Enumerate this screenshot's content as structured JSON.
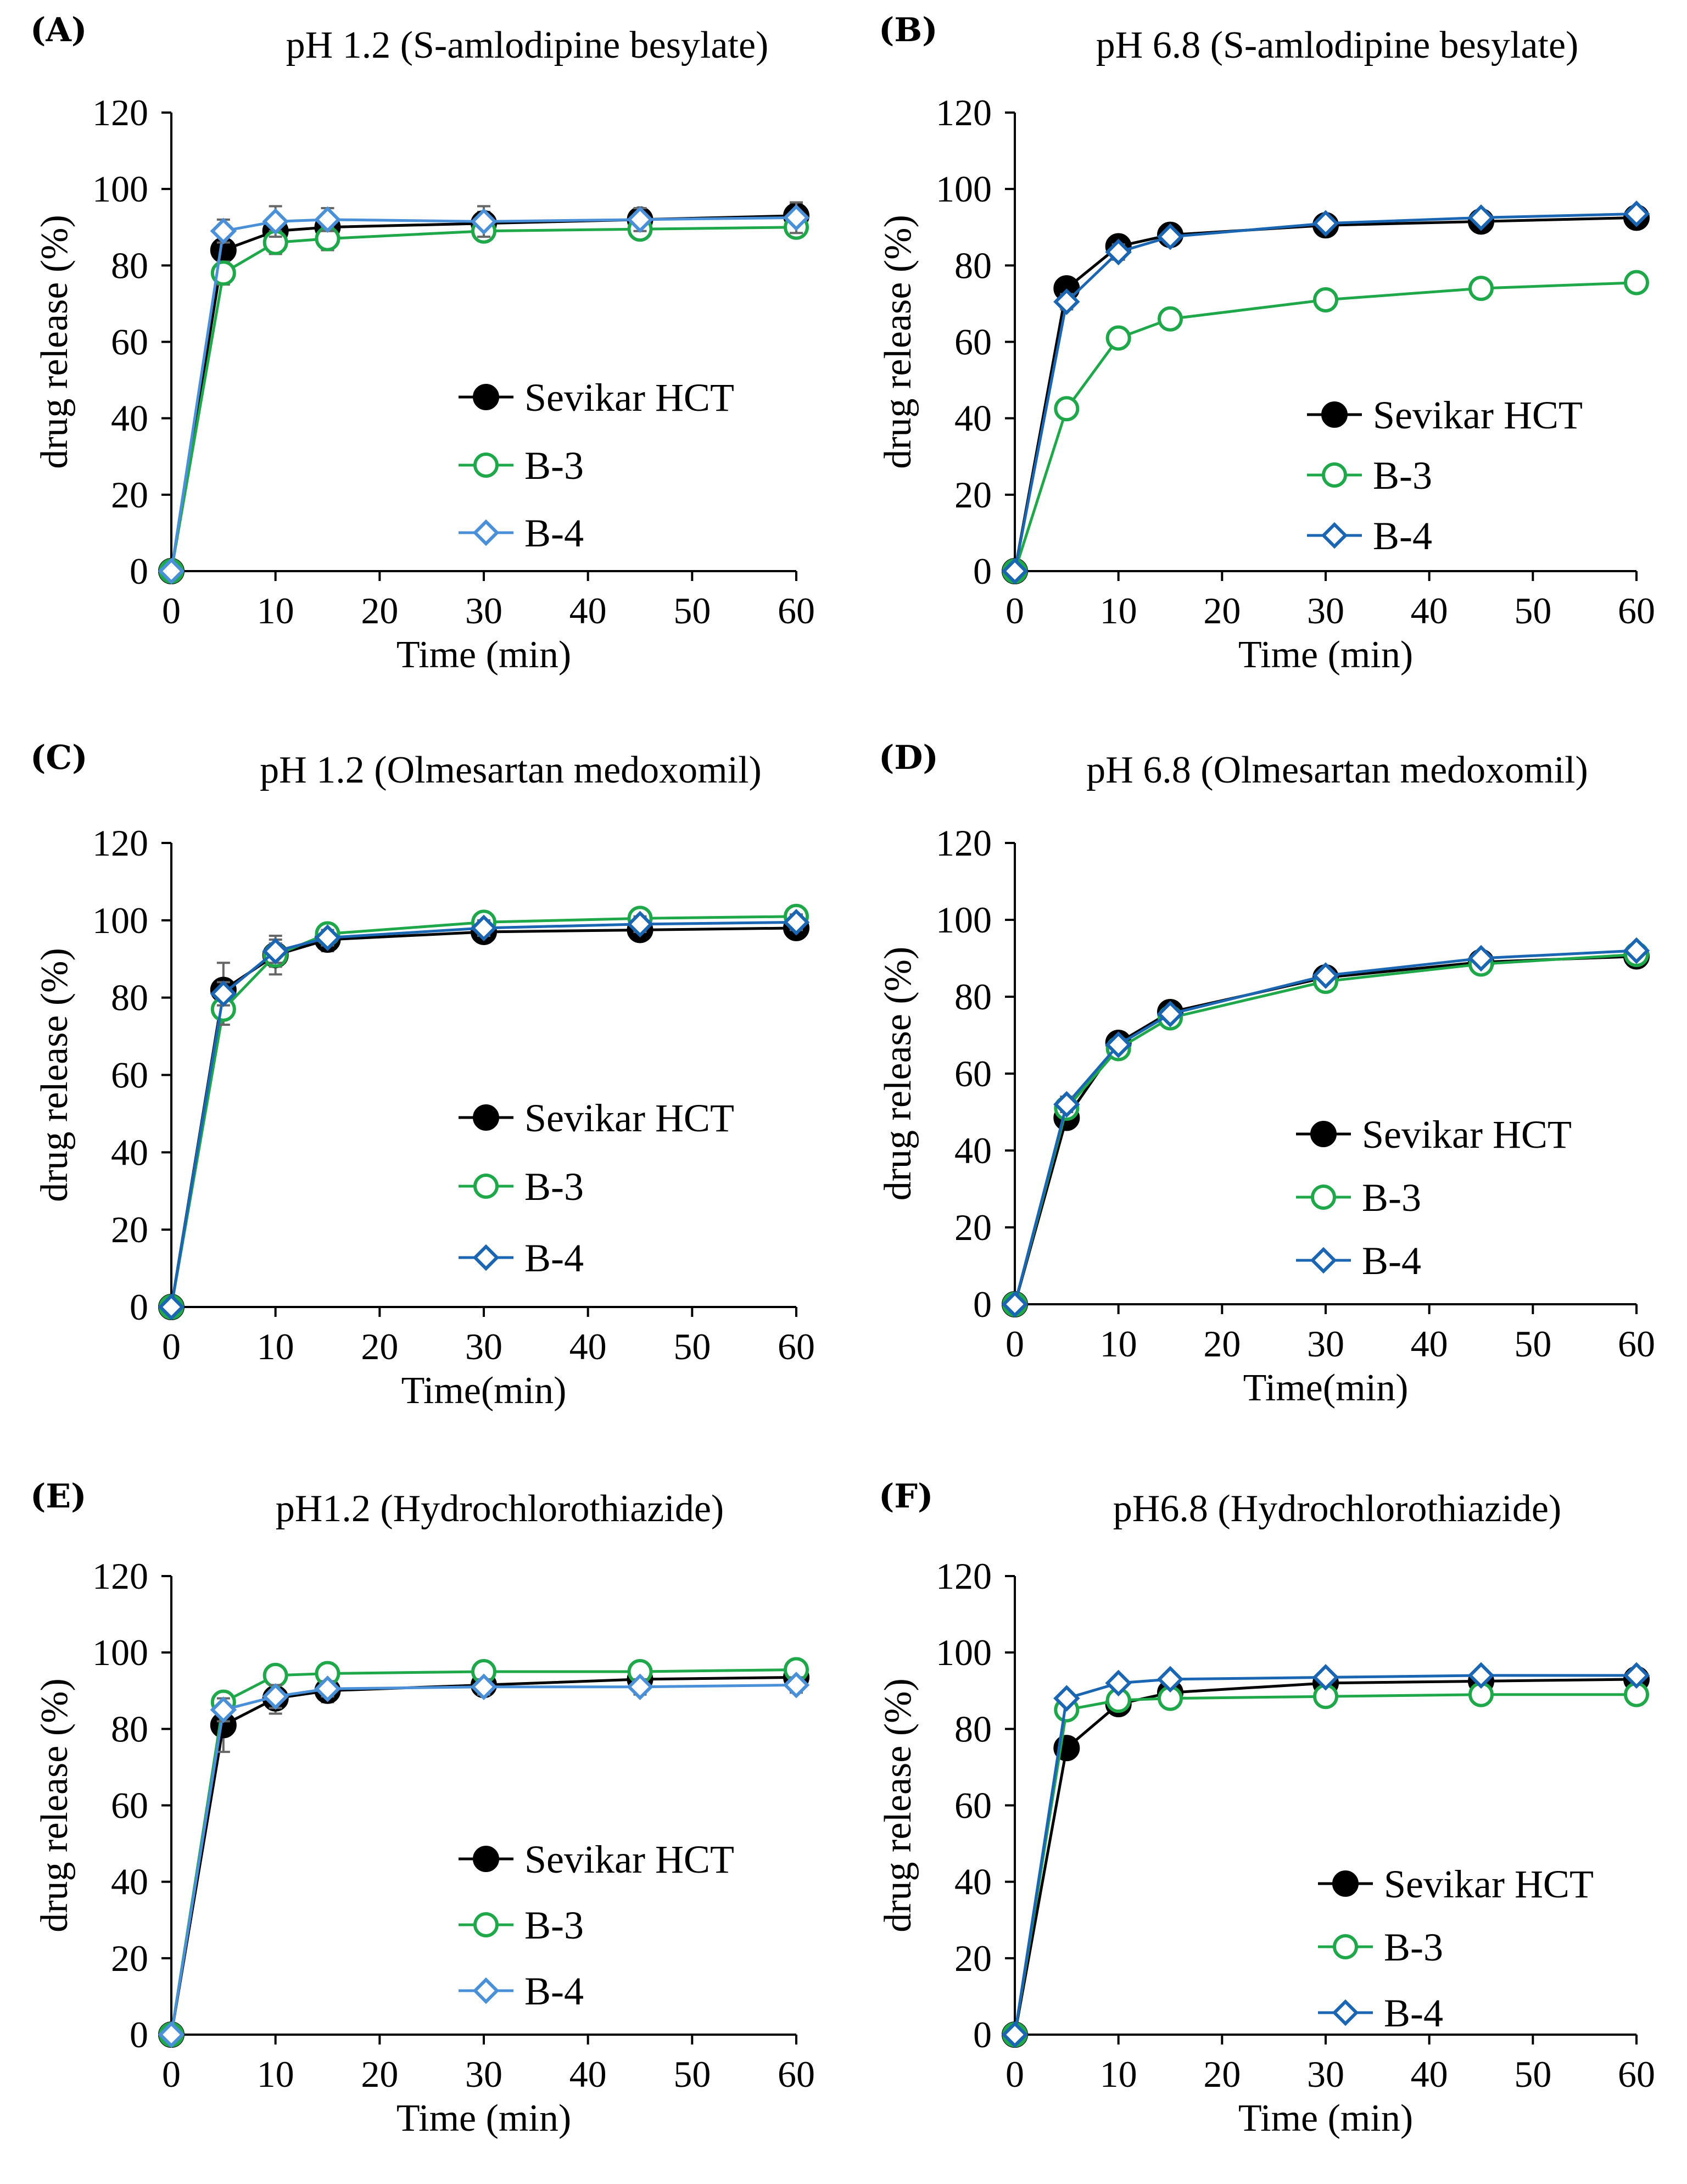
{
  "figure": {
    "panel_count": 6
  },
  "chart_data": [
    {
      "type": "line",
      "panel_label": "(A)",
      "title": "pH 1.2 (S-amlodipine besylate)",
      "xlabel": "Time (min)",
      "ylabel": "drug release (%)",
      "xlim": [
        0,
        60
      ],
      "ylim": [
        0,
        120
      ],
      "x_ticks": [
        0,
        10,
        20,
        30,
        40,
        50,
        60
      ],
      "y_ticks": [
        0,
        20,
        40,
        60,
        80,
        100,
        120
      ],
      "x": [
        0,
        5,
        10,
        15,
        30,
        45,
        60
      ],
      "legend": "center-right",
      "series": [
        {
          "name": "Sevikar HCT",
          "marker": "circle-filled",
          "color": "#000000",
          "values": [
            0,
            84,
            89,
            90,
            91,
            92,
            93
          ],
          "errors": [
            0,
            4,
            3,
            3,
            3,
            3,
            3
          ]
        },
        {
          "name": "B-3",
          "marker": "circle-open",
          "color": "#1fa84a",
          "values": [
            0,
            78,
            86,
            87,
            89,
            89.5,
            90
          ],
          "errors": [
            0,
            3,
            3,
            3,
            2,
            2,
            2
          ]
        },
        {
          "name": "B-4",
          "marker": "diamond-open",
          "color": "#4a90d9",
          "values": [
            0,
            89,
            91.5,
            92,
            91.5,
            92,
            92.5
          ],
          "errors": [
            0,
            3,
            4,
            3,
            4,
            3,
            4
          ]
        }
      ]
    },
    {
      "type": "line",
      "panel_label": "(B)",
      "title": "pH 6.8 (S-amlodipine besylate)",
      "xlabel": "Time (min)",
      "ylabel": "drug release (%)",
      "xlim": [
        0,
        60
      ],
      "ylim": [
        0,
        120
      ],
      "x_ticks": [
        0,
        10,
        20,
        30,
        40,
        50,
        60
      ],
      "y_ticks": [
        0,
        20,
        40,
        60,
        80,
        100,
        120
      ],
      "x": [
        0,
        5,
        10,
        15,
        30,
        45,
        60
      ],
      "legend": "bottom-right",
      "series": [
        {
          "name": "Sevikar HCT",
          "marker": "circle-filled",
          "color": "#000000",
          "values": [
            0,
            74,
            85,
            88,
            90.5,
            91.5,
            92.5
          ],
          "errors": [
            0,
            2,
            2,
            2,
            1.5,
            1.5,
            1.5
          ]
        },
        {
          "name": "B-3",
          "marker": "circle-open",
          "color": "#1fa84a",
          "values": [
            0,
            42.5,
            61,
            66,
            71,
            74,
            75.5
          ],
          "errors": [
            0,
            2,
            2,
            2,
            2,
            2,
            2
          ]
        },
        {
          "name": "B-4",
          "marker": "diamond-open",
          "color": "#1a66b3",
          "values": [
            0,
            70.5,
            83.5,
            87.5,
            91,
            92.5,
            93.5
          ],
          "errors": [
            0,
            2,
            2,
            1.5,
            1.5,
            1.5,
            1.5
          ]
        }
      ]
    },
    {
      "type": "line",
      "panel_label": "(C)",
      "title": "pH 1.2 (Olmesartan medoxomil)",
      "xlabel": "Time(min)",
      "ylabel": "drug release (%)",
      "xlim": [
        0,
        60
      ],
      "ylim": [
        0,
        120
      ],
      "x_ticks": [
        0,
        10,
        20,
        30,
        40,
        50,
        60
      ],
      "y_ticks": [
        0,
        20,
        40,
        60,
        80,
        100,
        120
      ],
      "x": [
        0,
        5,
        10,
        15,
        30,
        45,
        60
      ],
      "legend": "center-right",
      "series": [
        {
          "name": "Sevikar HCT",
          "marker": "circle-filled",
          "color": "#000000",
          "values": [
            0,
            82,
            91,
            95,
            97,
            97.5,
            98
          ],
          "errors": [
            0,
            7,
            5,
            3,
            2,
            2,
            2
          ]
        },
        {
          "name": "B-3",
          "marker": "circle-open",
          "color": "#1fa84a",
          "values": [
            0,
            77,
            91,
            96.5,
            99.5,
            100.5,
            101
          ],
          "errors": [
            0,
            4,
            3,
            2,
            2,
            2,
            2
          ]
        },
        {
          "name": "B-4",
          "marker": "diamond-open",
          "color": "#1a66b3",
          "values": [
            0,
            81,
            92,
            95.5,
            98,
            99,
            99.5
          ],
          "errors": [
            0,
            3,
            3,
            2,
            2,
            2,
            2
          ]
        }
      ]
    },
    {
      "type": "line",
      "panel_label": "(D)",
      "title": "pH 6.8 (Olmesartan medoxomil)",
      "xlabel": "Time(min)",
      "ylabel": "drug release (%)",
      "xlim": [
        0,
        60
      ],
      "ylim": [
        0,
        120
      ],
      "x_ticks": [
        0,
        10,
        20,
        30,
        40,
        50,
        60
      ],
      "y_ticks": [
        0,
        20,
        40,
        60,
        80,
        100,
        120
      ],
      "x": [
        0,
        5,
        10,
        15,
        30,
        45,
        60
      ],
      "legend": "bottom-right",
      "series": [
        {
          "name": "Sevikar HCT",
          "marker": "circle-filled",
          "color": "#000000",
          "values": [
            0,
            48.5,
            68,
            76,
            85,
            89,
            90.5
          ],
          "errors": [
            0,
            2,
            1.5,
            1.5,
            1.5,
            1.5,
            1.5
          ]
        },
        {
          "name": "B-3",
          "marker": "circle-open",
          "color": "#1fa84a",
          "values": [
            0,
            51,
            66.5,
            74.5,
            84,
            88.5,
            91
          ],
          "errors": [
            0,
            2,
            1.5,
            1.5,
            1.5,
            1.5,
            1.5
          ]
        },
        {
          "name": "B-4",
          "marker": "diamond-open",
          "color": "#1a66b3",
          "values": [
            0,
            52,
            67.5,
            75.5,
            85.5,
            90,
            92
          ],
          "errors": [
            0,
            2,
            1.5,
            1.5,
            1.5,
            1.5,
            1.5
          ]
        }
      ]
    },
    {
      "type": "line",
      "panel_label": "(E)",
      "title": "pH1.2 (Hydrochlorothiazide)",
      "xlabel": "Time (min)",
      "ylabel": "drug release (%)",
      "xlim": [
        0,
        60
      ],
      "ylim": [
        0,
        120
      ],
      "x_ticks": [
        0,
        10,
        20,
        30,
        40,
        50,
        60
      ],
      "y_ticks": [
        0,
        20,
        40,
        60,
        80,
        100,
        120
      ],
      "x": [
        0,
        5,
        10,
        15,
        30,
        45,
        60
      ],
      "legend": "bottom-right",
      "series": [
        {
          "name": "Sevikar HCT",
          "marker": "circle-filled",
          "color": "#000000",
          "values": [
            0,
            81,
            88,
            90,
            91.5,
            93,
            93.5
          ],
          "errors": [
            0,
            7,
            4,
            3,
            2,
            2,
            2
          ]
        },
        {
          "name": "B-3",
          "marker": "circle-open",
          "color": "#1fa84a",
          "values": [
            0,
            87,
            94,
            94.5,
            95,
            95,
            95.5
          ],
          "errors": [
            0,
            2,
            2,
            2,
            1.5,
            1.5,
            1.5
          ]
        },
        {
          "name": "B-4",
          "marker": "diamond-open",
          "color": "#4a90d9",
          "values": [
            0,
            85,
            88.5,
            90.5,
            91,
            91,
            91.5
          ],
          "errors": [
            0,
            3,
            3,
            2,
            2,
            2,
            2
          ]
        }
      ]
    },
    {
      "type": "line",
      "panel_label": "(F)",
      "title": "pH6.8 (Hydrochlorothiazide)",
      "xlabel": "Time (min)",
      "ylabel": "drug release (%)",
      "xlim": [
        0,
        60
      ],
      "ylim": [
        0,
        120
      ],
      "x_ticks": [
        0,
        10,
        20,
        30,
        40,
        50,
        60
      ],
      "y_ticks": [
        0,
        20,
        40,
        60,
        80,
        100,
        120
      ],
      "x": [
        0,
        5,
        10,
        15,
        30,
        45,
        60
      ],
      "legend": "bottom-right",
      "series": [
        {
          "name": "Sevikar HCT",
          "marker": "circle-filled",
          "color": "#000000",
          "values": [
            0,
            75,
            86.5,
            89.5,
            92,
            92.5,
            93
          ],
          "errors": [
            0,
            2,
            2,
            1.5,
            1.5,
            1.5,
            1.5
          ]
        },
        {
          "name": "B-3",
          "marker": "circle-open",
          "color": "#1fa84a",
          "values": [
            0,
            85,
            87.5,
            88,
            88.5,
            89,
            89
          ],
          "errors": [
            0,
            2,
            1.5,
            1.5,
            1.5,
            1.5,
            1.5
          ]
        },
        {
          "name": "B-4",
          "marker": "diamond-open",
          "color": "#1a66b3",
          "values": [
            0,
            88,
            92,
            93,
            93.5,
            94,
            94
          ],
          "errors": [
            0,
            1.5,
            1.5,
            1.5,
            1.5,
            1.5,
            1.5
          ]
        }
      ]
    }
  ]
}
